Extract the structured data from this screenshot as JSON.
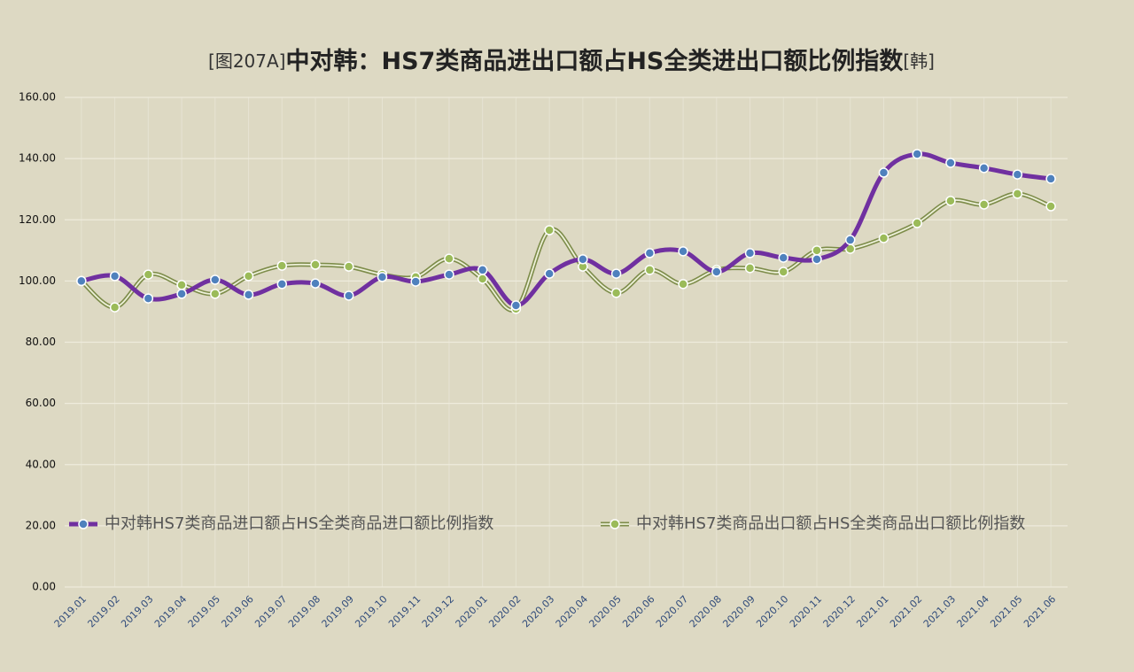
{
  "chart_data": {
    "type": "line",
    "title_prefix": "[图207A]",
    "title": "中对韩：HS7类商品进出口额占HS全类进出口额比例指数",
    "title_suffix": "[韩]",
    "categories": [
      "2019.01",
      "2019.02",
      "2019.03",
      "2019.04",
      "2019.05",
      "2019.06",
      "2019.07",
      "2019.08",
      "2019.09",
      "2019.10",
      "2019.11",
      "2019.12",
      "2020.01",
      "2020.02",
      "2020.03",
      "2020.04",
      "2020.05",
      "2020.06",
      "2020.07",
      "2020.08",
      "2020.09",
      "2020.10",
      "2020.11",
      "2020.12",
      "2021.01",
      "2021.02",
      "2021.03",
      "2021.04",
      "2021.05",
      "2021.06"
    ],
    "series": [
      {
        "name": "中对韩HS7类商品进口额占HS全类商品进口额比例指数",
        "color": "#7030a0",
        "values": [
          100,
          101.6,
          94.3,
          95.8,
          100.4,
          95.5,
          99.0,
          99.2,
          95.2,
          101.3,
          99.8,
          102.1,
          103.6,
          92.0,
          102.4,
          107.1,
          102.4,
          109.1,
          109.7,
          103.0,
          109.1,
          107.6,
          107.1,
          113.4,
          135.4,
          141.5,
          138.6,
          136.9,
          134.8,
          133.4
        ]
      },
      {
        "name": "中对韩HS7类商品出口额占HS全类商品出口额比例指数",
        "color": "#9bbb59",
        "values": [
          100,
          91.4,
          102.1,
          98.7,
          95.8,
          101.6,
          105.0,
          105.3,
          104.7,
          102.1,
          101.3,
          107.3,
          100.7,
          90.9,
          116.6,
          104.7,
          96.1,
          103.6,
          99.0,
          103.6,
          104.2,
          103.0,
          110.0,
          110.5,
          114.0,
          118.9,
          126.2,
          125.0,
          128.5,
          124.4
        ]
      }
    ],
    "ylim": [
      0,
      160
    ],
    "yticks": [
      {
        "value": 0,
        "label": "0.00"
      },
      {
        "value": 20,
        "label": "20.00"
      },
      {
        "value": 40,
        "label": "40.00"
      },
      {
        "value": 60,
        "label": "60.00"
      },
      {
        "value": 80,
        "label": "80.00"
      },
      {
        "value": 100,
        "label": "100.00"
      },
      {
        "value": 120,
        "label": "120.00"
      },
      {
        "value": 140,
        "label": "140.00"
      },
      {
        "value": 160,
        "label": "160.00"
      }
    ],
    "grid": true,
    "legend": "bottom"
  }
}
